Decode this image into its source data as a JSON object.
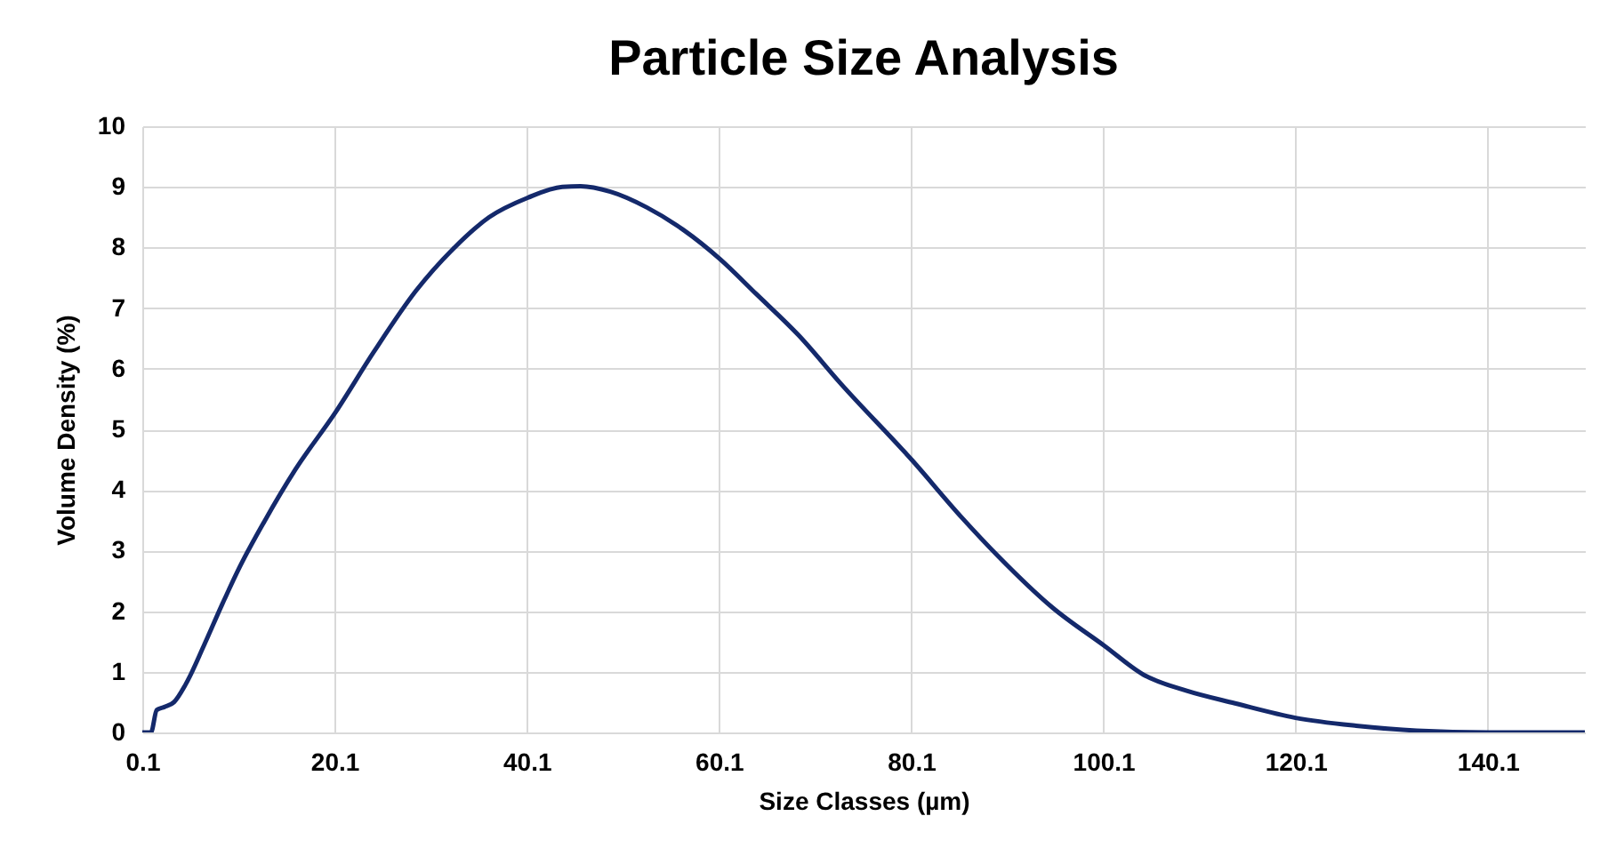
{
  "chart_data": {
    "type": "line",
    "title": "Particle Size Analysis",
    "xlabel": "Size Classes (µm)",
    "ylabel": "Volume Density (%)",
    "x": [
      0.1,
      1.0,
      1.6,
      2.4,
      3.4,
      4.6,
      6.5,
      8.4,
      10.3,
      12.8,
      16.0,
      20.2,
      24.2,
      28.6,
      32.4,
      36.2,
      40.2,
      43.8,
      45.7,
      48.8,
      52.6,
      56.4,
      60.2,
      64.0,
      68.4,
      72.8,
      80.2,
      85.4,
      89.2,
      94.8,
      100.2,
      104.3,
      108.7,
      113.8,
      120.1,
      126.4,
      132.7,
      140.2,
      150.2
    ],
    "series": [
      {
        "color": "#14296b",
        "values": [
          0,
          0,
          0.37,
          0.42,
          0.5,
          0.79,
          1.43,
          2.11,
          2.75,
          3.48,
          4.33,
          5.28,
          6.28,
          7.29,
          7.97,
          8.5,
          8.82,
          9.0,
          9.01,
          8.92,
          8.66,
          8.29,
          7.81,
          7.23,
          6.55,
          5.75,
          4.49,
          3.54,
          2.9,
          2.06,
          1.43,
          0.95,
          0.69,
          0.48,
          0.24,
          0.11,
          0.03,
          0,
          0
        ]
      }
    ],
    "xlim": [
      0.1,
      150.2
    ],
    "xticks": [
      0.1,
      20.1,
      40.1,
      60.1,
      80.1,
      100.1,
      120.1,
      140.1
    ],
    "ylim": [
      0,
      10
    ],
    "yticks": [
      0,
      1,
      2,
      3,
      4,
      5,
      6,
      7,
      8,
      9,
      10
    ],
    "grid": true,
    "marker": "none",
    "line_style": "solid"
  }
}
